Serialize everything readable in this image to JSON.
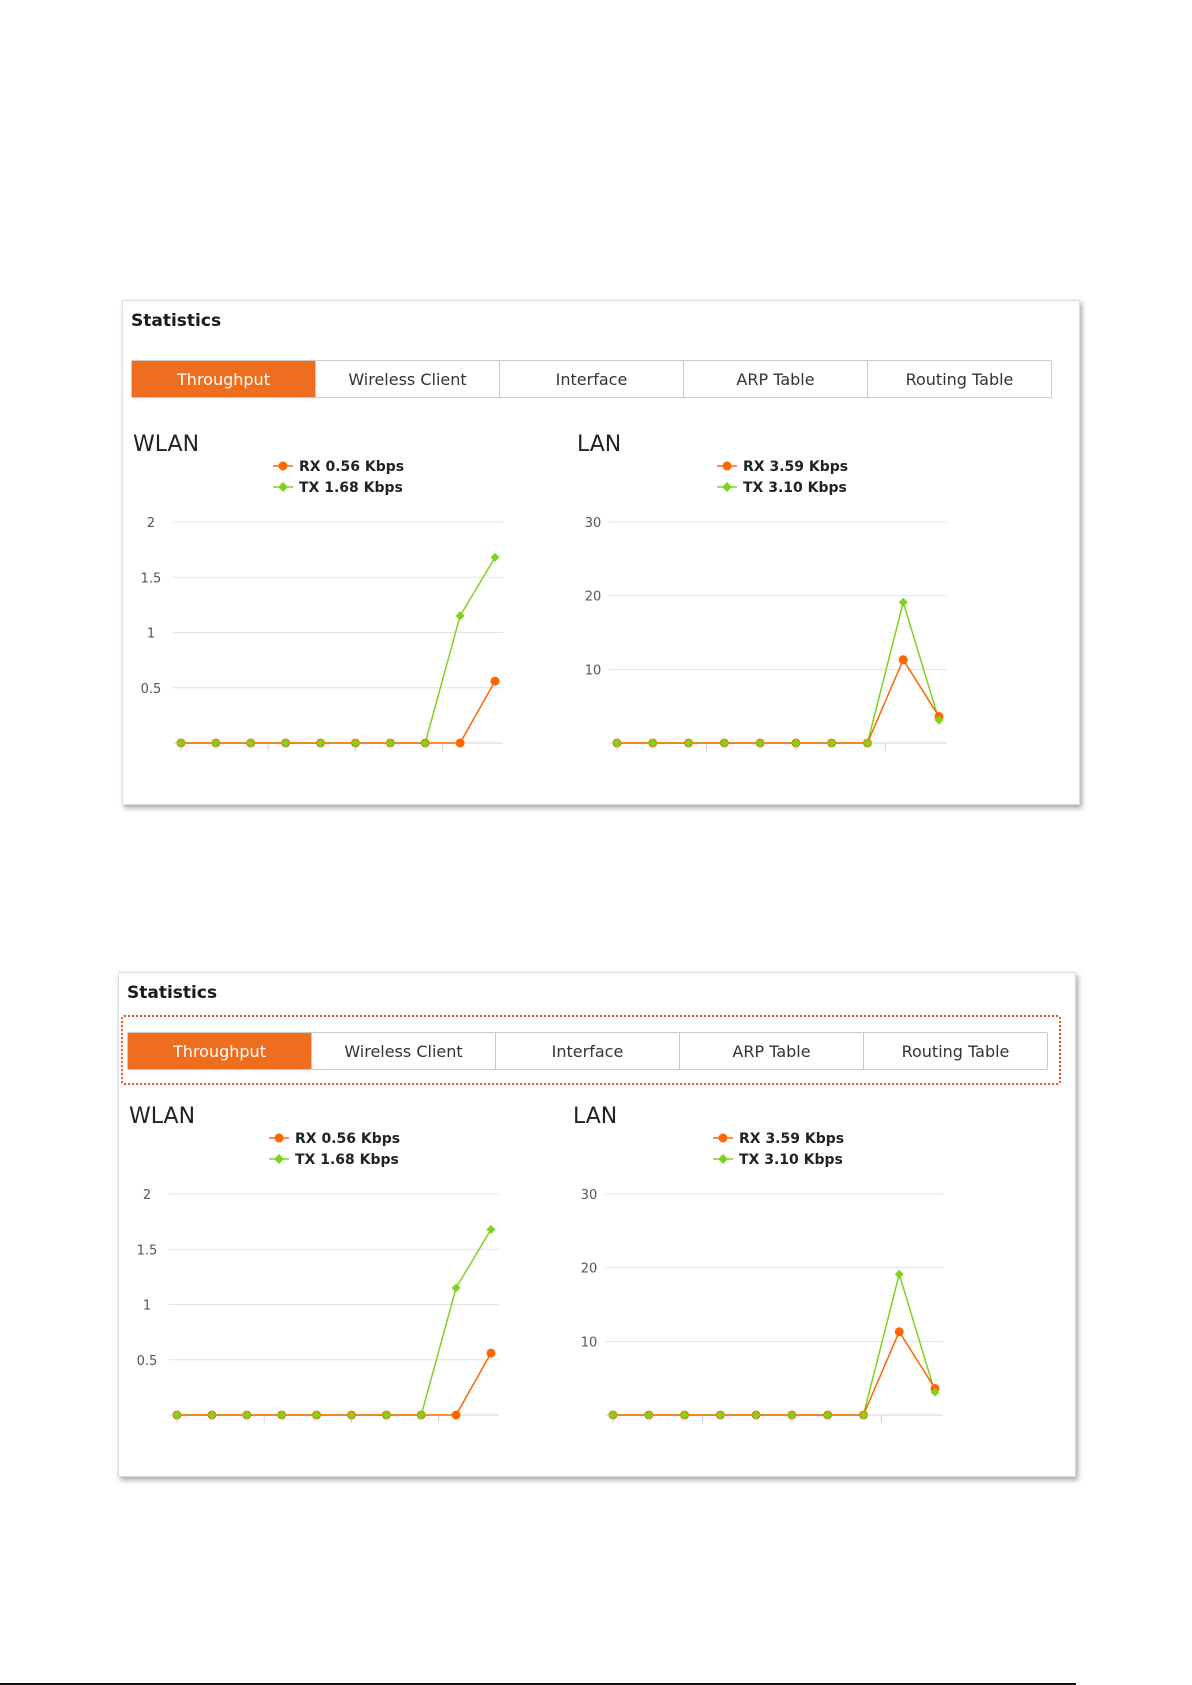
{
  "panels": [
    {
      "title": "Statistics",
      "highlight_tabs": false,
      "tabs": [
        "Throughput",
        "Wireless Client",
        "Interface",
        "ARP Table",
        "Routing Table"
      ],
      "active_tab": 0
    },
    {
      "title": "Statistics",
      "highlight_tabs": true,
      "tabs": [
        "Throughput",
        "Wireless Client",
        "Interface",
        "ARP Table",
        "Routing Table"
      ],
      "active_tab": 0
    }
  ],
  "colors": {
    "rx": "#ff6600",
    "tx": "#7ed321",
    "active_tab": "#ee6d1f",
    "highlight": "#e2541c"
  },
  "chart_data": [
    {
      "type": "line",
      "title": "WLAN",
      "ylim": [
        0,
        2
      ],
      "yticks": [
        "2",
        "1.5",
        "1",
        "0.5"
      ],
      "ytick_values": [
        2,
        1.5,
        1,
        0.5
      ],
      "grid": true,
      "legend_placement": "top-center",
      "series": [
        {
          "name": "RX",
          "legend": "RX 0.56 Kbps",
          "values": [
            0,
            0,
            0,
            0,
            0,
            0,
            0,
            0,
            0,
            0.56
          ]
        },
        {
          "name": "TX",
          "legend": "TX 1.68 Kbps",
          "values": [
            0,
            0,
            0,
            0,
            0,
            0,
            0,
            0,
            1.15,
            1.68
          ]
        }
      ]
    },
    {
      "type": "line",
      "title": "LAN",
      "ylim": [
        0,
        30
      ],
      "yticks": [
        "30",
        "20",
        "10"
      ],
      "ytick_values": [
        30,
        20,
        10
      ],
      "grid": true,
      "legend_placement": "top-center",
      "series": [
        {
          "name": "RX",
          "legend": "RX 3.59 Kbps",
          "values": [
            0,
            0,
            0,
            0,
            0,
            0,
            0,
            0,
            11.3,
            3.59
          ]
        },
        {
          "name": "TX",
          "legend": "TX 3.10 Kbps",
          "values": [
            0,
            0,
            0,
            0,
            0,
            0,
            0,
            0,
            19.1,
            3.1
          ]
        }
      ]
    }
  ]
}
